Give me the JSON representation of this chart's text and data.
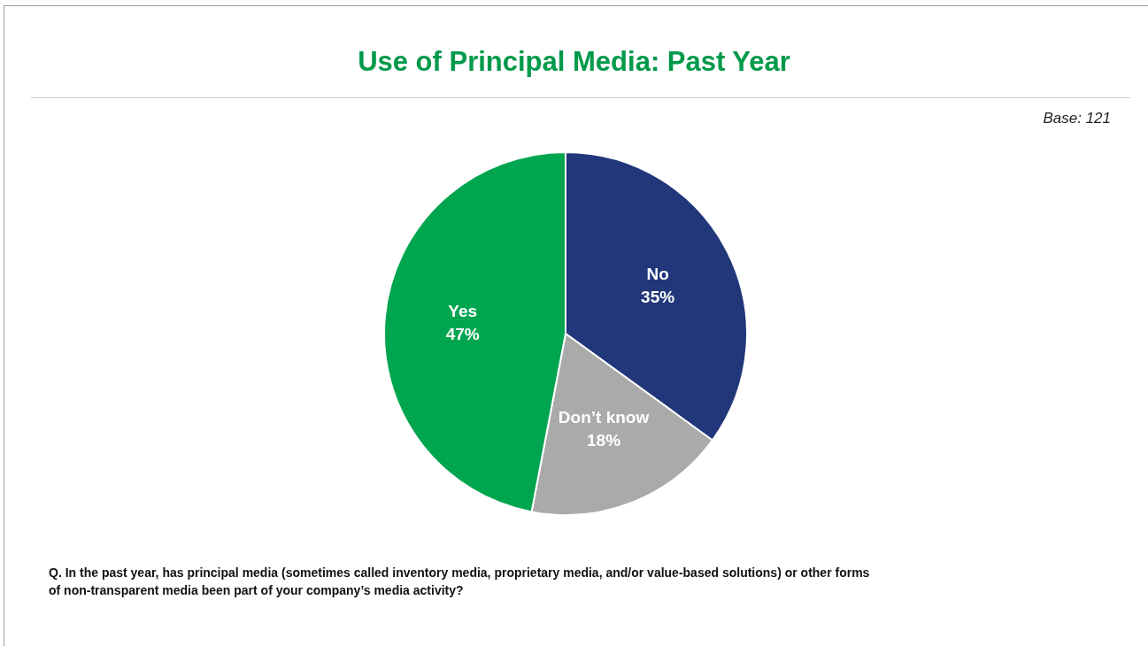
{
  "chart_data": {
    "type": "pie",
    "title": "Use of Principal Media: Past Year",
    "categories": [
      "No",
      "Don’t know",
      "Yes"
    ],
    "values": [
      35,
      18,
      47
    ],
    "value_labels": [
      "35%",
      "18%",
      "47%"
    ],
    "colors": [
      "#21377a",
      "#aaaaaa",
      "#00a54f"
    ],
    "legend": false,
    "annotations": [
      "Base: 121",
      "Q. In the past year, has principal media (sometimes called inventory media, proprietary media, and/or value-based solutions) or other forms of non-transparent media been part of your company’s media activity?"
    ]
  }
}
